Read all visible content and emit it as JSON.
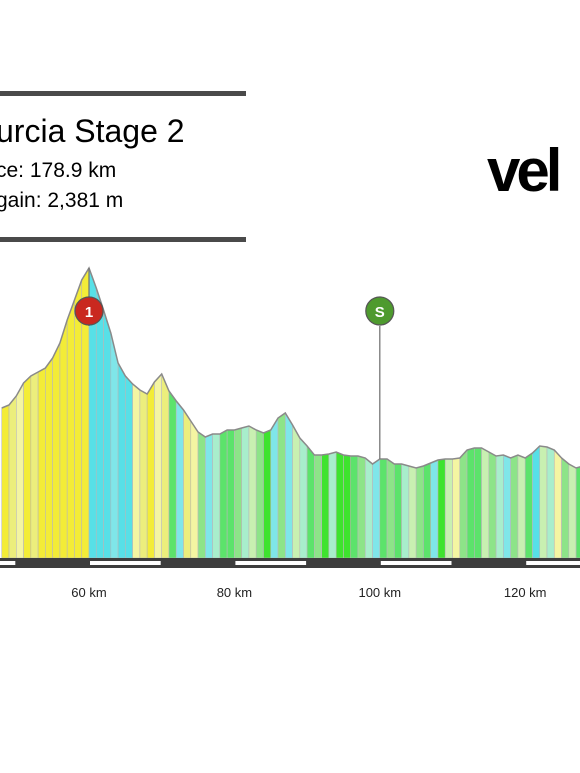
{
  "header": {
    "title": "urcia Stage 2",
    "distance": "ce: 178.9 km",
    "elevation_gain": " gain: 2,381 m"
  },
  "logo": {
    "text": "vel"
  },
  "chart_data": {
    "type": "area",
    "title": "urcia Stage 2",
    "xlabel": "",
    "ylabel": "",
    "x_ticks": [
      {
        "km": 60,
        "label": "60 km"
      },
      {
        "km": 80,
        "label": "80 km"
      },
      {
        "km": 100,
        "label": "100 km"
      },
      {
        "km": 120,
        "label": "120 km"
      }
    ],
    "x": [
      48,
      49,
      50,
      51,
      52,
      53,
      54,
      55,
      56,
      57,
      58,
      59,
      60,
      61,
      62,
      63,
      64,
      65,
      66,
      67,
      68,
      69,
      70,
      71,
      72,
      73,
      74,
      75,
      76,
      77,
      78,
      79,
      80,
      81,
      82,
      83,
      84,
      85,
      86,
      87,
      88,
      89,
      90,
      91,
      92,
      93,
      94,
      95,
      96,
      97,
      98,
      99,
      100,
      101,
      102,
      103,
      104,
      105,
      106,
      107,
      108,
      109,
      110,
      111,
      112,
      113,
      114,
      115,
      116,
      117,
      118,
      119,
      120,
      121,
      122,
      123,
      124,
      125,
      126,
      127,
      128
    ],
    "y": [
      150,
      153,
      162,
      175,
      182,
      186,
      190,
      200,
      215,
      238,
      258,
      278,
      290,
      270,
      248,
      225,
      195,
      182,
      174,
      168,
      164,
      176,
      184,
      167,
      157,
      148,
      137,
      126,
      121,
      124,
      124,
      128,
      128,
      130,
      132,
      128,
      125,
      128,
      140,
      145,
      133,
      120,
      112,
      103,
      103,
      104,
      106,
      103,
      102,
      102,
      100,
      94,
      99,
      99,
      94,
      94,
      92,
      90,
      92,
      95,
      98,
      99,
      99,
      100,
      108,
      110,
      110,
      106,
      102,
      103,
      100,
      103,
      100,
      105,
      112,
      111,
      108,
      100,
      94,
      90,
      92
    ],
    "series_colors": [
      "#f3ec37",
      "#ecee7c",
      "#f4f5a2",
      "#57e0e7",
      "#7fe6e9",
      "#5ce36b",
      "#8de488",
      "#3ee32e",
      "#a8eecc",
      "#c8f0b1"
    ],
    "markers": [
      {
        "km": 60,
        "label": "1",
        "color": "#c9281f"
      },
      {
        "km": 100,
        "label": "S",
        "color": "#4e9a2e"
      }
    ],
    "xlim": [
      48,
      128
    ],
    "grid": false,
    "legend": "none"
  }
}
